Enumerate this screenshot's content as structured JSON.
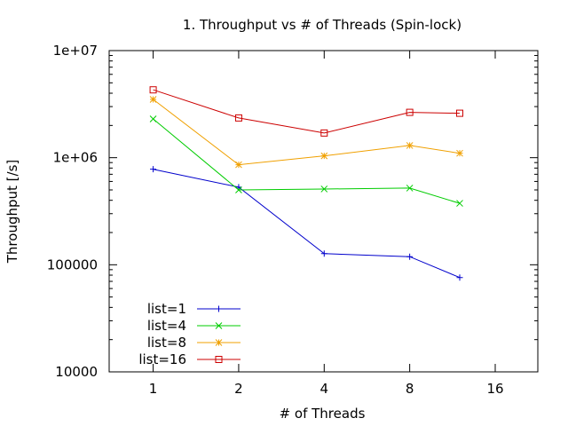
{
  "chart_data": {
    "type": "line",
    "title": "1. Throughput vs # of Threads (Spin-lock)",
    "xlabel": "# of Threads",
    "ylabel": "Throughput [/s]",
    "x_scale": "log2",
    "y_scale": "log10",
    "xlim": [
      0.7,
      22.6
    ],
    "ylim": [
      10000,
      10000000
    ],
    "x_ticks": [
      1,
      2,
      4,
      8,
      16
    ],
    "x_tick_labels": [
      "1",
      "2",
      "4",
      "8",
      "16"
    ],
    "y_ticks": [
      10000,
      100000,
      1000000,
      10000000
    ],
    "y_tick_labels": [
      "10000",
      "100000",
      "1e+06",
      "1e+07"
    ],
    "legend_position": "bottom-left",
    "grid": false,
    "series": [
      {
        "name": "list=1",
        "color": "#0000cc",
        "marker": "plus",
        "x": [
          1,
          2,
          4,
          8,
          12
        ],
        "y": [
          780000,
          530000,
          127000,
          119000,
          76000
        ]
      },
      {
        "name": "list=4",
        "color": "#00cc00",
        "marker": "cross",
        "x": [
          1,
          2,
          4,
          8,
          12
        ],
        "y": [
          2300000,
          500000,
          510000,
          520000,
          375000
        ]
      },
      {
        "name": "list=8",
        "color": "#f0a000",
        "marker": "star",
        "x": [
          1,
          2,
          4,
          8,
          12
        ],
        "y": [
          3500000,
          860000,
          1040000,
          1300000,
          1100000
        ]
      },
      {
        "name": "list=16",
        "color": "#cc0000",
        "marker": "square",
        "x": [
          1,
          2,
          4,
          8,
          12
        ],
        "y": [
          4300000,
          2350000,
          1700000,
          2650000,
          2600000
        ]
      }
    ]
  }
}
